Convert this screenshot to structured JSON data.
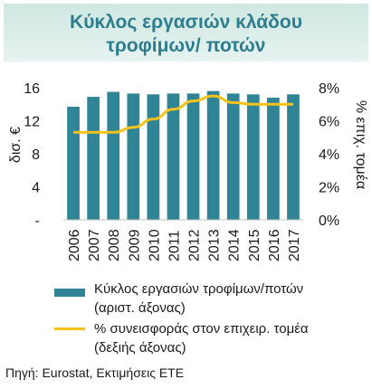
{
  "title": {
    "line1": "Κύκλος εργασιών κλάδου",
    "line2": "τροφίμων/ ποτών"
  },
  "chart_data": {
    "type": "bar",
    "categories": [
      "2006",
      "2007",
      "2008",
      "2009",
      "2010",
      "2011",
      "2012",
      "2013",
      "2014",
      "2015",
      "2016",
      "2017"
    ],
    "series": [
      {
        "name": "Κύκλος εργασιών τροφίμων/ποτών (αριστ. άξονας)",
        "type": "bar",
        "axis": "left",
        "color": "#2f8596",
        "values": [
          13.7,
          14.9,
          15.5,
          15.3,
          15.2,
          15.3,
          15.3,
          15.6,
          15.3,
          15.2,
          14.8,
          15.2
        ]
      },
      {
        "name": "% συνεισφοράς στον επιχειρ. τομέα (δεξιής άξονας)",
        "type": "line",
        "axis": "right",
        "color": "#f7c21a",
        "values": [
          5.3,
          5.3,
          5.3,
          5.6,
          6.1,
          6.7,
          7.2,
          7.5,
          7.1,
          7.0,
          7.0,
          7.0
        ]
      }
    ],
    "y_left": {
      "label": "δισ. €",
      "ylim": [
        0,
        16
      ],
      "ticks": [
        0,
        4,
        8,
        12,
        16
      ],
      "tick_labels": [
        "-",
        "4",
        "8",
        "12",
        "16"
      ]
    },
    "y_right": {
      "label": "% επιχ. τομέα",
      "ylim": [
        0,
        8
      ],
      "ticks": [
        0,
        2,
        4,
        6,
        8
      ],
      "tick_labels": [
        "0%",
        "2%",
        "4%",
        "6%",
        "8%"
      ]
    },
    "grid": false,
    "legend_position": "bottom"
  },
  "legend": {
    "bar_line1": "Κύκλος εργασιών τροφίμων/ποτών",
    "bar_line2": "(αριστ. άξονας)",
    "line_line1": "% συνεισφοράς στον επιχειρ. τομέα",
    "line_line2": "(δεξιής άξονας)"
  },
  "source": "Πηγή: Eurostat, Εκτιμήσεις ΕΤΕ"
}
